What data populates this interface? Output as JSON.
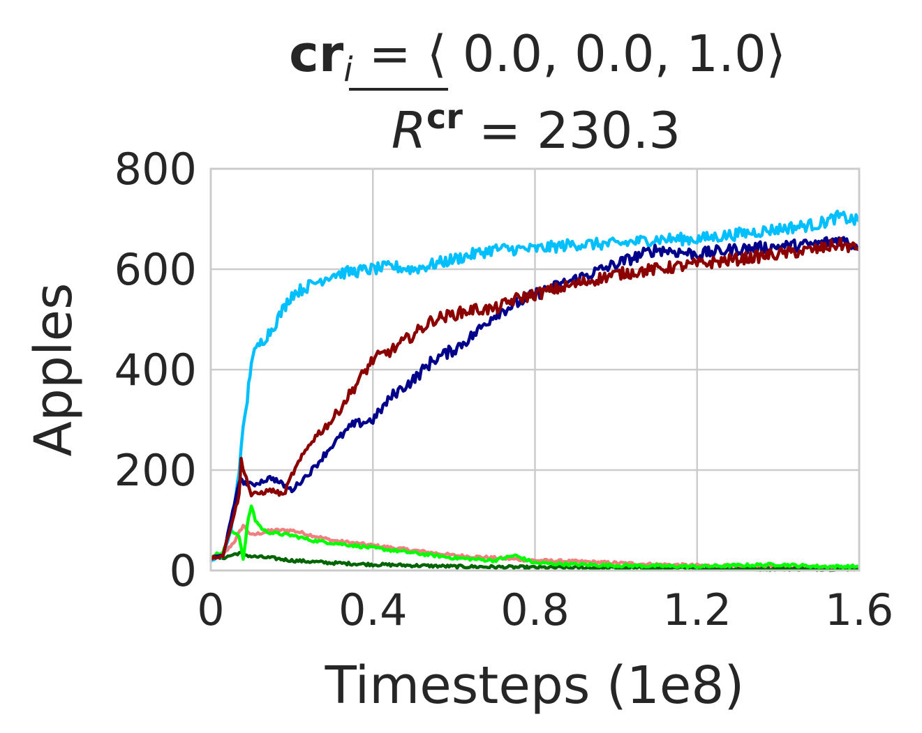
{
  "chart_data": {
    "type": "line",
    "title_line1": {
      "prefix": "cr",
      "subscript": "i",
      "equals": " = ",
      "vector": "⟨ 0.0, 0.0, 1.0⟩"
    },
    "title_line2": {
      "symbol": "R",
      "superscript": "cr",
      "equals": " = ",
      "value": "230.3"
    },
    "xlabel": "Timesteps (1e8)",
    "ylabel": "Apples",
    "xlim": [
      0,
      1.6
    ],
    "ylim": [
      0,
      800
    ],
    "xticks": [
      0,
      0.4,
      0.8,
      1.2,
      1.6
    ],
    "xtick_labels": [
      "0",
      "0.4",
      "0.8",
      "1.2",
      "1.6"
    ],
    "yticks": [
      0,
      200,
      400,
      600,
      800
    ],
    "ytick_labels": [
      "0",
      "200",
      "400",
      "600",
      "800"
    ],
    "grid": true,
    "legend": "none",
    "series": [
      {
        "color": "#f08080",
        "x": [
          0.0,
          0.03,
          0.06,
          0.08,
          0.1,
          0.15,
          0.2,
          0.25,
          0.3,
          0.4,
          0.5,
          0.6,
          0.7,
          0.8,
          0.9,
          1.0,
          1.1,
          1.2,
          1.3,
          1.4,
          1.5,
          1.6
        ],
        "y": [
          25,
          30,
          60,
          90,
          70,
          80,
          80,
          70,
          60,
          50,
          40,
          30,
          25,
          20,
          18,
          15,
          12,
          10,
          8,
          7,
          6,
          5
        ]
      },
      {
        "color": "#006400",
        "x": [
          0.0,
          0.03,
          0.05,
          0.07,
          0.1,
          0.15,
          0.2,
          0.3,
          0.4,
          0.5,
          0.6,
          0.8,
          1.0,
          1.2,
          1.4,
          1.6
        ],
        "y": [
          25,
          25,
          30,
          35,
          28,
          25,
          20,
          15,
          12,
          10,
          8,
          6,
          5,
          4,
          3,
          3
        ]
      },
      {
        "color": "#00ff00",
        "x": [
          0.0,
          0.03,
          0.05,
          0.07,
          0.08,
          0.09,
          0.1,
          0.11,
          0.13,
          0.15,
          0.2,
          0.25,
          0.3,
          0.4,
          0.5,
          0.6,
          0.7,
          0.75,
          0.8,
          0.9,
          1.0,
          1.2,
          1.4,
          1.5,
          1.6
        ],
        "y": [
          30,
          35,
          80,
          70,
          20,
          90,
          130,
          100,
          80,
          75,
          70,
          60,
          55,
          45,
          35,
          25,
          20,
          30,
          15,
          12,
          10,
          8,
          12,
          8,
          8
        ]
      },
      {
        "color": "#00bfff",
        "x": [
          0.0,
          0.03,
          0.05,
          0.07,
          0.08,
          0.09,
          0.1,
          0.12,
          0.15,
          0.2,
          0.25,
          0.3,
          0.35,
          0.4,
          0.45,
          0.5,
          0.55,
          0.6,
          0.65,
          0.7,
          0.8,
          0.9,
          1.0,
          1.1,
          1.2,
          1.3,
          1.4,
          1.5,
          1.55,
          1.6
        ],
        "y": [
          20,
          30,
          80,
          200,
          280,
          340,
          420,
          450,
          480,
          550,
          570,
          590,
          595,
          600,
          605,
          600,
          610,
          620,
          630,
          640,
          640,
          650,
          650,
          660,
          660,
          670,
          680,
          690,
          705,
          695
        ]
      },
      {
        "color": "#00008b",
        "x": [
          0.0,
          0.03,
          0.05,
          0.07,
          0.1,
          0.15,
          0.2,
          0.25,
          0.3,
          0.35,
          0.4,
          0.45,
          0.5,
          0.55,
          0.6,
          0.65,
          0.7,
          0.75,
          0.8,
          0.9,
          1.0,
          1.1,
          1.2,
          1.3,
          1.4,
          1.5,
          1.55,
          1.6
        ],
        "y": [
          25,
          30,
          100,
          180,
          170,
          185,
          160,
          200,
          250,
          290,
          300,
          350,
          380,
          420,
          440,
          470,
          510,
          530,
          550,
          580,
          610,
          640,
          630,
          640,
          645,
          650,
          660,
          645
        ]
      },
      {
        "color": "#8b0000",
        "x": [
          0.0,
          0.03,
          0.05,
          0.07,
          0.075,
          0.1,
          0.15,
          0.18,
          0.2,
          0.25,
          0.3,
          0.35,
          0.4,
          0.45,
          0.5,
          0.55,
          0.6,
          0.65,
          0.7,
          0.75,
          0.8,
          0.9,
          1.0,
          1.1,
          1.2,
          1.3,
          1.4,
          1.5,
          1.55,
          1.6
        ],
        "y": [
          25,
          30,
          90,
          150,
          220,
          150,
          160,
          150,
          190,
          260,
          300,
          360,
          420,
          440,
          470,
          500,
          510,
          520,
          520,
          540,
          550,
          570,
          590,
          600,
          610,
          620,
          630,
          640,
          650,
          640
        ]
      }
    ]
  }
}
